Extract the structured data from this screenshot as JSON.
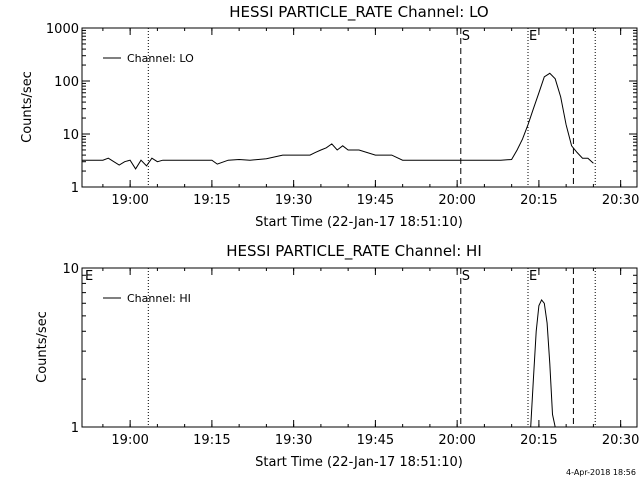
{
  "footer": {
    "stamp": "4-Apr-2018 18:56"
  },
  "chart_data": [
    {
      "type": "line",
      "title": "HESSI PARTICLE_RATE Channel: LO",
      "xlabel": "Start Time (22-Jan-17 18:51:10)",
      "ylabel": "Counts/sec",
      "x_unit": "time (HH:MM)",
      "xlim": [
        "18:51:10",
        "20:33:00"
      ],
      "ylim": [
        1,
        1000
      ],
      "yscale": "log",
      "xticks": [
        "19:00",
        "19:15",
        "19:30",
        "19:45",
        "20:00",
        "20:15",
        "20:30"
      ],
      "yticks": [
        1,
        10,
        100,
        1000
      ],
      "ytick_labels": [
        "1",
        "10",
        "100",
        "1000"
      ],
      "grid": false,
      "legend": {
        "position": "top-left",
        "entries": [
          "Channel: LO"
        ]
      },
      "markers": [
        {
          "label": "",
          "time": "19:03:20",
          "style": "dotted"
        },
        {
          "label": "S",
          "time": "20:00:40",
          "style": "dashed"
        },
        {
          "label": "E",
          "time": "20:13:00",
          "style": "dotted"
        },
        {
          "label": "",
          "time": "20:21:20",
          "style": "dashed"
        },
        {
          "label": "",
          "time": "20:25:20",
          "style": "dotted"
        }
      ],
      "series": [
        {
          "name": "Channel: LO",
          "x": [
            "18:51:10",
            "18:55",
            "18:56",
            "18:58",
            "18:59",
            "19:00",
            "19:01",
            "19:02",
            "19:03",
            "19:04",
            "19:05",
            "19:06",
            "19:08",
            "19:10",
            "19:12",
            "19:15",
            "19:16",
            "19:18",
            "19:20",
            "19:22",
            "19:25",
            "19:28",
            "19:30",
            "19:33",
            "19:34",
            "19:35",
            "19:36",
            "19:37",
            "19:38",
            "19:39",
            "19:40",
            "19:42",
            "19:45",
            "19:48",
            "19:50",
            "19:55",
            "20:00",
            "20:02",
            "20:05",
            "20:08",
            "20:10",
            "20:11",
            "20:12",
            "20:13",
            "20:14",
            "20:15",
            "20:16",
            "20:17",
            "20:18",
            "20:19",
            "20:20",
            "20:21",
            "20:22",
            "20:23",
            "20:24",
            "20:25"
          ],
          "y": [
            3.2,
            3.2,
            3.5,
            2.6,
            3.0,
            3.2,
            2.2,
            3.2,
            2.5,
            3.5,
            3.0,
            3.2,
            3.2,
            3.2,
            3.2,
            3.2,
            2.7,
            3.2,
            3.3,
            3.2,
            3.4,
            4.0,
            4.0,
            4.0,
            4.5,
            5.0,
            5.5,
            6.5,
            5.0,
            6.0,
            5.0,
            5.0,
            4.0,
            4.0,
            3.2,
            3.2,
            3.2,
            3.2,
            3.2,
            3.2,
            3.3,
            5.0,
            8.0,
            15,
            30,
            60,
            120,
            140,
            110,
            50,
            15,
            6,
            4.5,
            3.5,
            3.5,
            2.8
          ]
        }
      ]
    },
    {
      "type": "line",
      "title": "HESSI PARTICLE_RATE Channel: HI",
      "xlabel": "Start Time (22-Jan-17 18:51:10)",
      "ylabel": "Counts/sec",
      "x_unit": "time (HH:MM)",
      "xlim": [
        "18:51:10",
        "20:33:00"
      ],
      "ylim": [
        1,
        10
      ],
      "yscale": "log",
      "xticks": [
        "19:00",
        "19:15",
        "19:30",
        "19:45",
        "20:00",
        "20:15",
        "20:30"
      ],
      "yticks": [
        1,
        10
      ],
      "ytick_labels": [
        "1",
        "10"
      ],
      "grid": false,
      "legend": {
        "position": "top-left",
        "entries": [
          "Channel: HI"
        ]
      },
      "markers": [
        {
          "label": "E",
          "time": "18:51:10",
          "style": "none"
        },
        {
          "label": "",
          "time": "19:03:20",
          "style": "dotted"
        },
        {
          "label": "S",
          "time": "20:00:40",
          "style": "dashed"
        },
        {
          "label": "E",
          "time": "20:13:00",
          "style": "dotted"
        },
        {
          "label": "",
          "time": "20:21:20",
          "style": "dashed"
        },
        {
          "label": "",
          "time": "20:25:20",
          "style": "dotted"
        }
      ],
      "series": [
        {
          "name": "Channel: HI",
          "x": [
            "20:13:30",
            "20:14:00",
            "20:14:30",
            "20:15:00",
            "20:15:30",
            "20:16:00",
            "20:16:30",
            "20:17:00",
            "20:17:30",
            "20:18:00"
          ],
          "y": [
            1.0,
            2.0,
            4.0,
            5.8,
            6.3,
            6.0,
            4.5,
            2.5,
            1.2,
            1.0
          ]
        }
      ]
    }
  ]
}
